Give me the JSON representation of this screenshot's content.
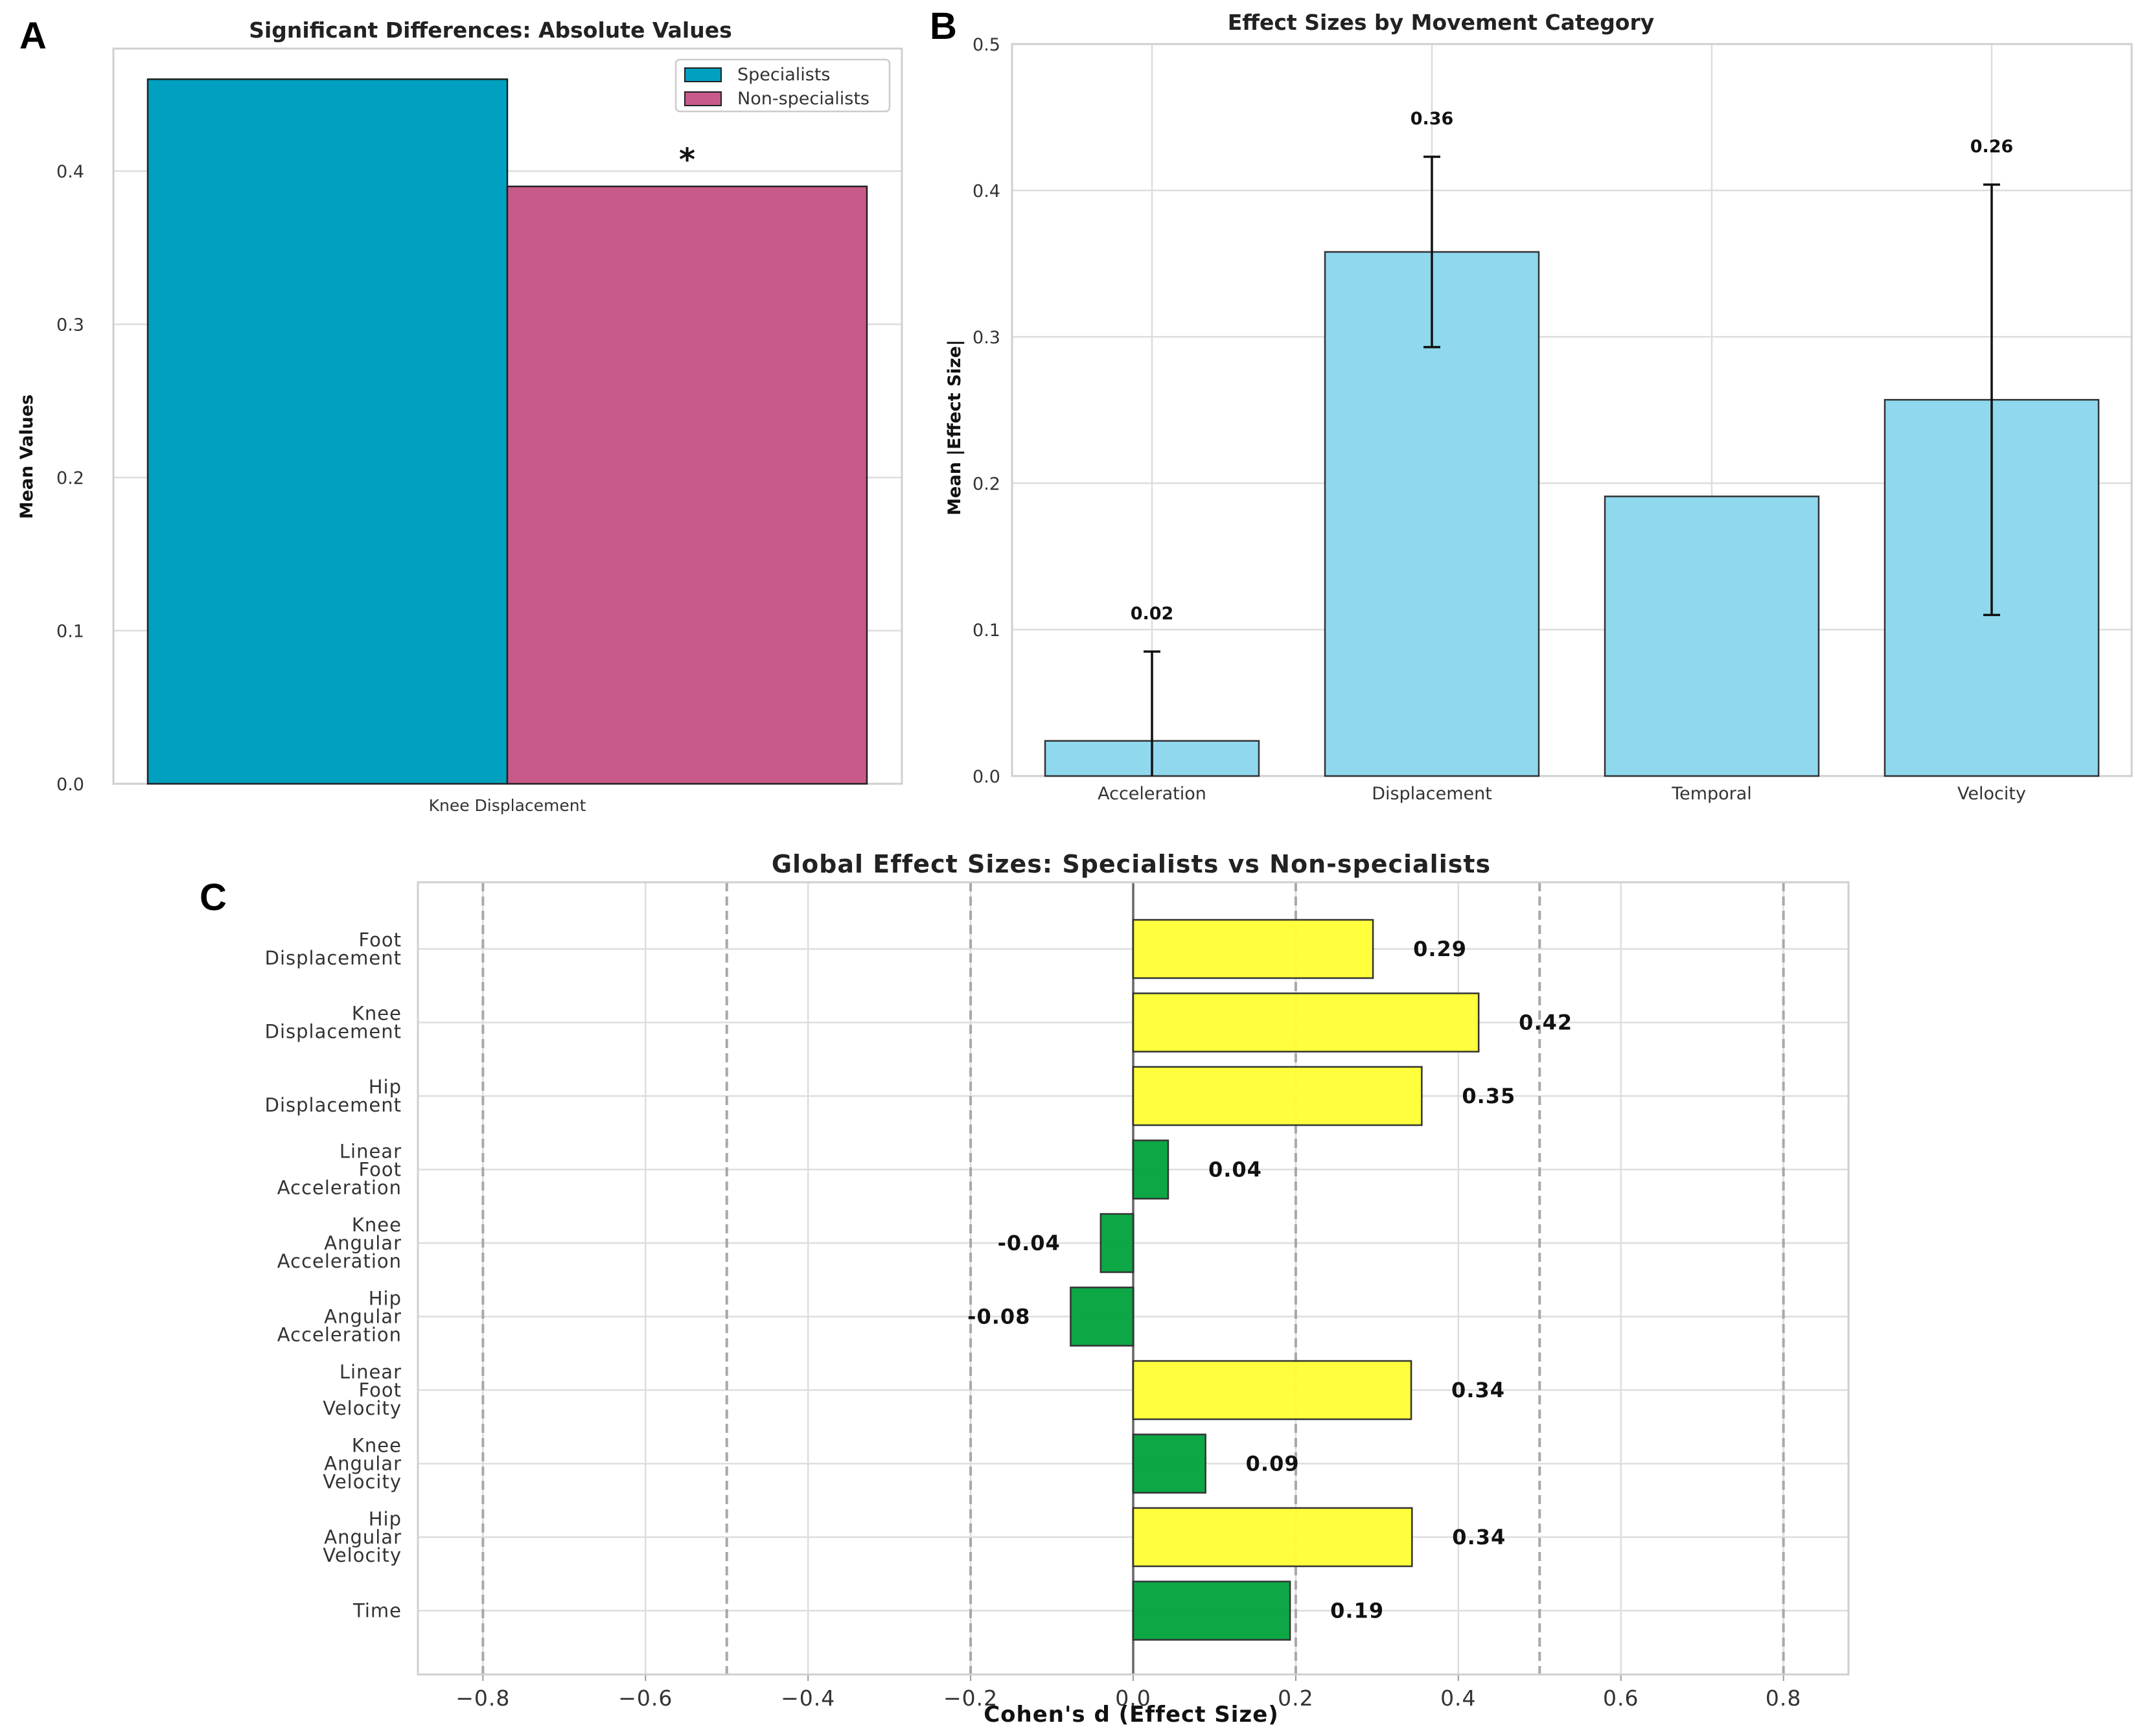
{
  "chart_data": [
    {
      "panel": "A",
      "type": "bar",
      "title": "Significant Differences: Absolute Values",
      "xlabel": "",
      "ylabel": "Mean Values",
      "categories": [
        "Knee Displacement"
      ],
      "series": [
        {
          "name": "Specialists",
          "values": [
            0.46
          ],
          "color": "#00A0C0"
        },
        {
          "name": "Non-specialists",
          "values": [
            0.39
          ],
          "color": "#C85A8A"
        }
      ],
      "ylim": [
        0,
        0.48
      ],
      "yticks": [
        "0.0",
        "0.1",
        "0.2",
        "0.3",
        "0.4"
      ],
      "annotation": "*",
      "legend": "top-right",
      "grid": true
    },
    {
      "panel": "B",
      "type": "bar",
      "title": "Effect Sizes by Movement Category",
      "xlabel": "",
      "ylabel": "Mean |Effect Size|",
      "categories": [
        "Acceleration",
        "Displacement",
        "Temporal",
        "Velocity"
      ],
      "values": [
        0.024,
        0.358,
        0.191,
        0.257
      ],
      "errors": [
        0.061,
        0.065,
        null,
        0.147
      ],
      "value_labels": [
        "0.02",
        "0.36",
        "",
        "0.26"
      ],
      "color": "#8FD8EE",
      "ylim": [
        0,
        0.5
      ],
      "yticks": [
        "0.0",
        "0.1",
        "0.2",
        "0.3",
        "0.4",
        "0.5"
      ],
      "grid": true
    },
    {
      "panel": "C",
      "type": "bar",
      "orientation": "horizontal",
      "title": "Global Effect Sizes: Specialists vs Non-specialists",
      "xlabel": "Cohen's d (Effect Size)",
      "ylabel": "",
      "categories": [
        [
          "Foot",
          "Displacement"
        ],
        [
          "Knee",
          "Displacement"
        ],
        [
          "Hip",
          "Displacement"
        ],
        [
          "Linear",
          "Foot",
          "Acceleration"
        ],
        [
          "Knee",
          "Angular",
          "Acceleration"
        ],
        [
          "Hip",
          "Angular",
          "Acceleration"
        ],
        [
          "Linear",
          "Foot",
          "Velocity"
        ],
        [
          "Knee",
          "Angular",
          "Velocity"
        ],
        [
          "Hip",
          "Angular",
          "Velocity"
        ],
        [
          "Time"
        ]
      ],
      "values": [
        0.295,
        0.425,
        0.355,
        0.043,
        -0.04,
        -0.077,
        0.342,
        0.089,
        0.343,
        0.193
      ],
      "value_labels": [
        "0.29",
        "0.42",
        "0.35",
        "0.04",
        "-0.04",
        "-0.08",
        "0.34",
        "0.09",
        "0.34",
        "0.19"
      ],
      "colors": [
        "#FFFF33",
        "#FFFF33",
        "#FFFF33",
        "#00A23C",
        "#00A23C",
        "#00A23C",
        "#FFFF33",
        "#00A23C",
        "#FFFF33",
        "#00A23C"
      ],
      "xlim": [
        -0.88,
        0.88
      ],
      "xticks": [
        -0.8,
        -0.6,
        -0.4,
        -0.2,
        0.0,
        0.2,
        0.4,
        0.6,
        0.8
      ],
      "xtick_labels": [
        "−0.8",
        "−0.6",
        "−0.4",
        "−0.2",
        "0.0",
        "0.2",
        "0.4",
        "0.6",
        "0.8"
      ],
      "reference_lines": [
        -0.8,
        -0.5,
        -0.2,
        0.2,
        0.5,
        0.8
      ],
      "grid": true
    }
  ],
  "panel_letters": [
    "A",
    "B",
    "C"
  ]
}
